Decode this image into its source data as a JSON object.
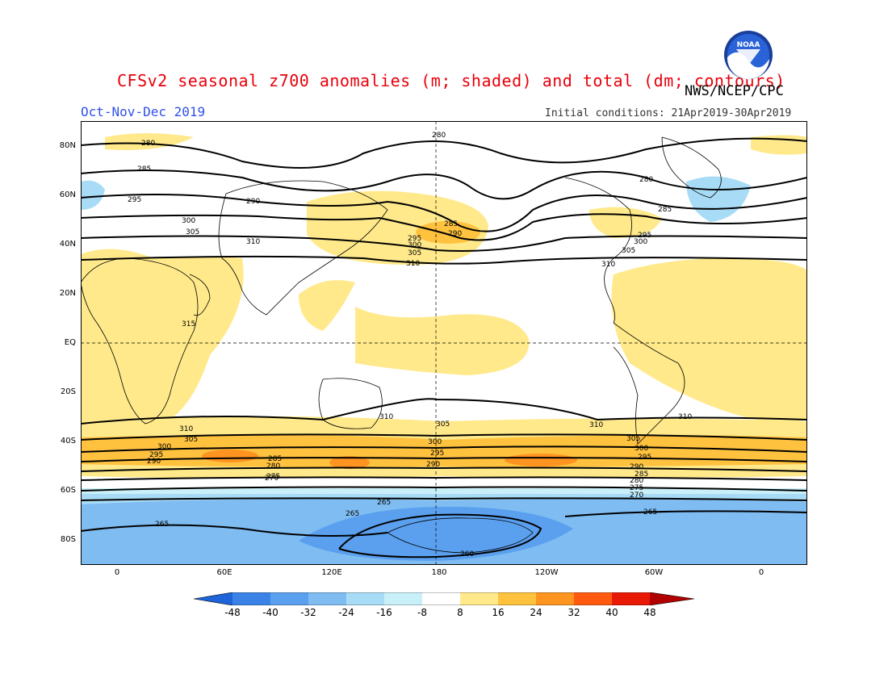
{
  "header": {
    "title": "CFSv2 seasonal z700 anomalies (m; shaded) and total (dm; contours)",
    "agency": "NWS/NCEP/CPC",
    "period": "Oct-Nov-Dec 2019",
    "initial_conditions": "Initial conditions: 21Apr2019-30Apr2019",
    "logo_text": "NOAA"
  },
  "axes": {
    "lat_labels": [
      "80N",
      "60N",
      "40N",
      "20N",
      "EQ",
      "20S",
      "40S",
      "60S",
      "80S"
    ],
    "lon_labels": [
      "0",
      "60E",
      "120E",
      "180",
      "120W",
      "60W",
      "0"
    ]
  },
  "contour_labels": {
    "north": [
      "280",
      "285",
      "290",
      "295",
      "300",
      "305",
      "310"
    ],
    "tropics": [
      "315"
    ],
    "south": [
      "310",
      "305",
      "300",
      "295",
      "290",
      "285",
      "280",
      "275",
      "270",
      "265",
      "260"
    ]
  },
  "colorbar": {
    "labels": [
      "-48",
      "-40",
      "-32",
      "-24",
      "-16",
      "-8",
      "8",
      "16",
      "24",
      "32",
      "40",
      "48"
    ],
    "colors": [
      "#1c64d8",
      "#3a82e6",
      "#5aa0ee",
      "#7fbcf2",
      "#a8dcf6",
      "#c9f0f9",
      "#ffffff",
      "#ffe98a",
      "#ffc23f",
      "#ff9420",
      "#ff5a10",
      "#e81a05",
      "#b00000"
    ]
  },
  "colors": {
    "title": "#e8000b",
    "period": "#3050e8",
    "positive_light": "#ffe98a",
    "positive_mid": "#ffc23f",
    "positive_strong": "#ff9420",
    "negative_light": "#a8dcf6",
    "negative_mid": "#7fbcf2",
    "negative_strong": "#5aa0ee"
  }
}
